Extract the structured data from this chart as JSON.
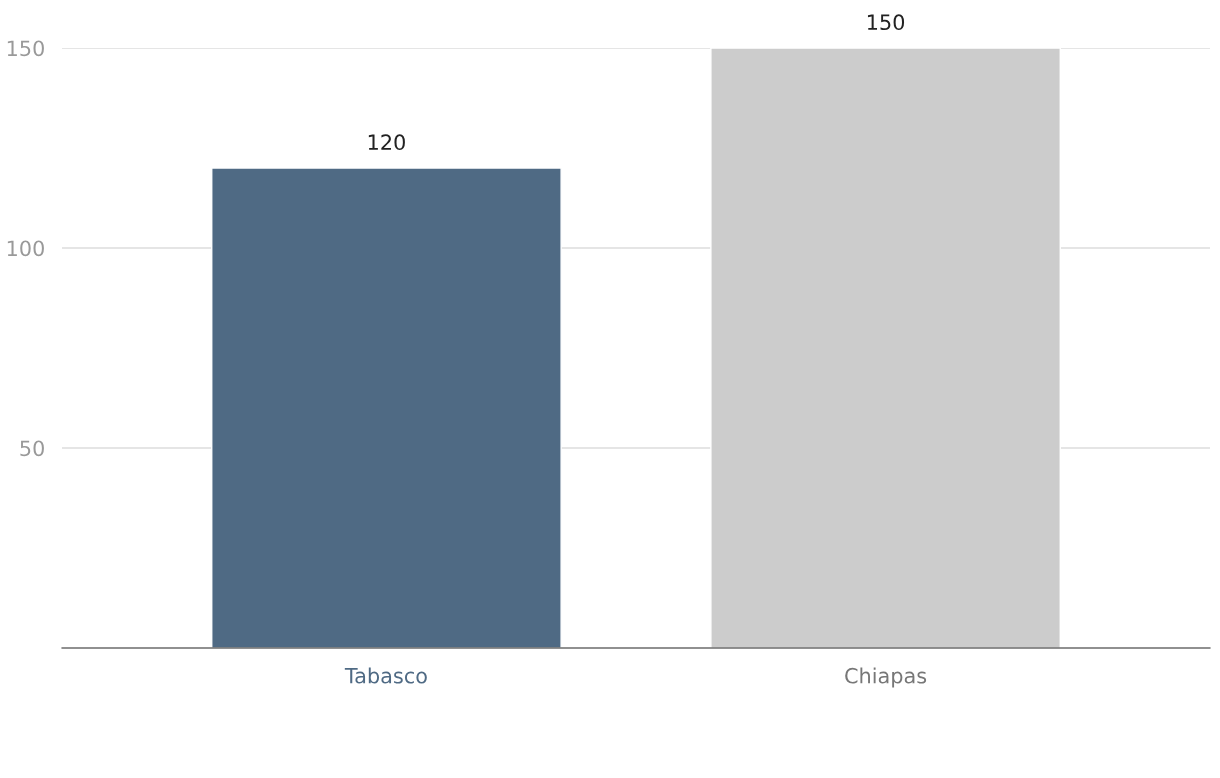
{
  "chart_data": {
    "type": "bar",
    "categories": [
      "Tabasco",
      "Chiapas"
    ],
    "values": [
      120,
      150
    ],
    "colors": [
      "#4f6a84",
      "#cccccc"
    ],
    "ylim": [
      0,
      150
    ],
    "yticks": [
      50,
      100,
      150
    ],
    "grid": "y",
    "data_labels": true
  }
}
